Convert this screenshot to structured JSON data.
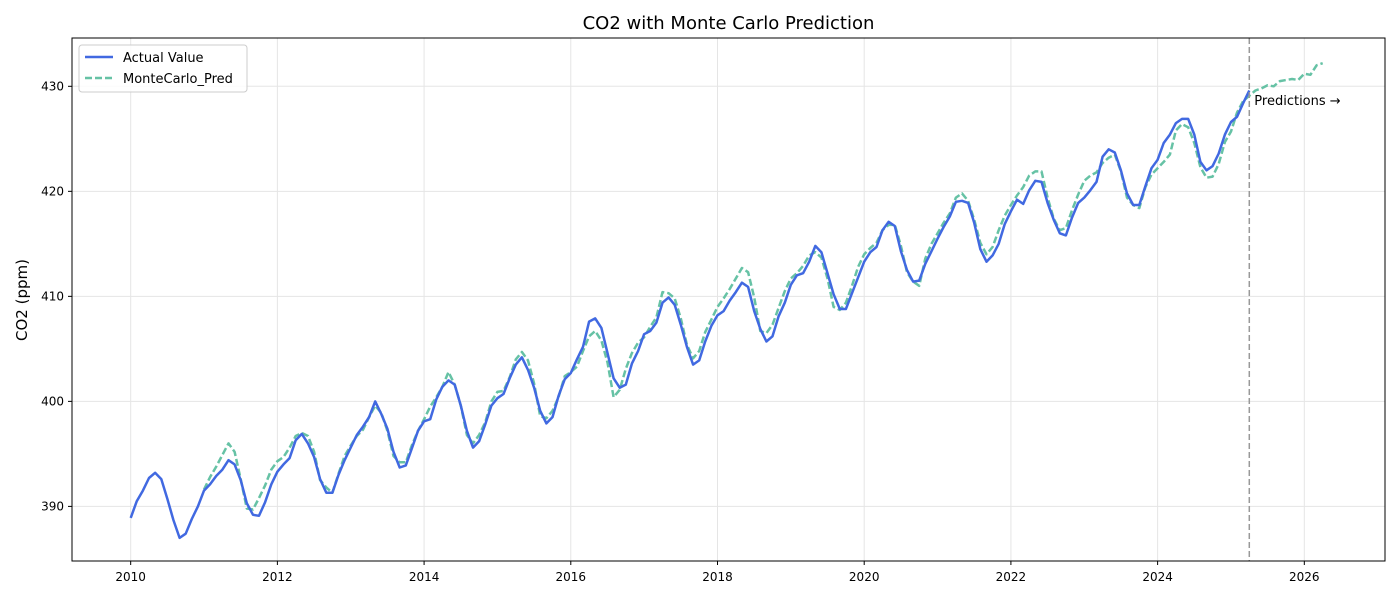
{
  "chart_data": {
    "type": "line",
    "title": "CO2 with Monte Carlo Prediction",
    "xlabel": "",
    "ylabel": "CO2 (ppm)",
    "xlim": [
      2009.2,
      2027.1
    ],
    "ylim": [
      384.8,
      434.6
    ],
    "xticks": [
      2010,
      2012,
      2014,
      2016,
      2018,
      2020,
      2022,
      2024,
      2026
    ],
    "yticks": [
      390,
      400,
      410,
      420,
      430
    ],
    "grid": true,
    "legend_position": "top-left",
    "colors": {
      "actual": "#4169e1",
      "montecarlo": "#66c2a5",
      "cutoff": "#999999"
    },
    "cutoff_x": 2025.25,
    "annotation": "Predictions →",
    "series": [
      {
        "name": "Actual Value",
        "style": "solid",
        "x": [
          2010.0,
          2010.083,
          2010.167,
          2010.25,
          2010.333,
          2010.417,
          2010.5,
          2010.583,
          2010.667,
          2010.75,
          2010.833,
          2010.917,
          2011.0,
          2011.083,
          2011.167,
          2011.25,
          2011.333,
          2011.417,
          2011.5,
          2011.583,
          2011.667,
          2011.75,
          2011.833,
          2011.917,
          2012.0,
          2012.083,
          2012.167,
          2012.25,
          2012.333,
          2012.417,
          2012.5,
          2012.583,
          2012.667,
          2012.75,
          2012.833,
          2012.917,
          2013.0,
          2013.083,
          2013.167,
          2013.25,
          2013.333,
          2013.417,
          2013.5,
          2013.583,
          2013.667,
          2013.75,
          2013.833,
          2013.917,
          2014.0,
          2014.083,
          2014.167,
          2014.25,
          2014.333,
          2014.417,
          2014.5,
          2014.583,
          2014.667,
          2014.75,
          2014.833,
          2014.917,
          2015.0,
          2015.083,
          2015.167,
          2015.25,
          2015.333,
          2015.417,
          2015.5,
          2015.583,
          2015.667,
          2015.75,
          2015.833,
          2015.917,
          2016.0,
          2016.083,
          2016.167,
          2016.25,
          2016.333,
          2016.417,
          2016.5,
          2016.583,
          2016.667,
          2016.75,
          2016.833,
          2016.917,
          2017.0,
          2017.083,
          2017.167,
          2017.25,
          2017.333,
          2017.417,
          2017.5,
          2017.583,
          2017.667,
          2017.75,
          2017.833,
          2017.917,
          2018.0,
          2018.083,
          2018.167,
          2018.25,
          2018.333,
          2018.417,
          2018.5,
          2018.583,
          2018.667,
          2018.75,
          2018.833,
          2018.917,
          2019.0,
          2019.083,
          2019.167,
          2019.25,
          2019.333,
          2019.417,
          2019.5,
          2019.583,
          2019.667,
          2019.75,
          2019.833,
          2019.917,
          2020.0,
          2020.083,
          2020.167,
          2020.25,
          2020.333,
          2020.417,
          2020.5,
          2020.583,
          2020.667,
          2020.75,
          2020.833,
          2020.917,
          2021.0,
          2021.083,
          2021.167,
          2021.25,
          2021.333,
          2021.417,
          2021.5,
          2021.583,
          2021.667,
          2021.75,
          2021.833,
          2021.917,
          2022.0,
          2022.083,
          2022.167,
          2022.25,
          2022.333,
          2022.417,
          2022.5,
          2022.583,
          2022.667,
          2022.75,
          2022.833,
          2022.917,
          2023.0,
          2023.083,
          2023.167,
          2023.25,
          2023.333,
          2023.417,
          2023.5,
          2023.583,
          2023.667,
          2023.75,
          2023.833,
          2023.917,
          2024.0,
          2024.083,
          2024.167,
          2024.25,
          2024.333,
          2024.417,
          2024.5,
          2024.583,
          2024.667,
          2024.75,
          2024.833,
          2024.917,
          2025.0,
          2025.083,
          2025.167,
          2025.25
        ],
        "y": [
          388.9,
          390.5,
          391.5,
          392.7,
          393.2,
          392.6,
          390.7,
          388.7,
          387.0,
          387.4,
          388.8,
          390.0,
          391.5,
          392.1,
          392.9,
          393.5,
          394.4,
          394.0,
          392.5,
          390.3,
          389.2,
          389.1,
          390.4,
          392.1,
          393.3,
          394.0,
          394.6,
          396.3,
          396.9,
          396.0,
          394.7,
          392.6,
          391.3,
          391.3,
          393.0,
          394.4,
          395.6,
          396.8,
          397.6,
          398.5,
          400.0,
          398.8,
          397.4,
          395.2,
          393.7,
          393.9,
          395.5,
          397.2,
          398.1,
          398.3,
          400.2,
          401.4,
          402.0,
          401.6,
          399.6,
          397.2,
          395.6,
          396.2,
          397.8,
          399.6,
          400.3,
          400.7,
          402.2,
          403.5,
          404.2,
          403.0,
          401.3,
          399.1,
          397.9,
          398.5,
          400.5,
          402.1,
          402.7,
          404.0,
          405.2,
          407.6,
          407.9,
          407.0,
          404.6,
          402.2,
          401.3,
          401.6,
          403.6,
          404.8,
          406.4,
          406.7,
          407.5,
          409.4,
          409.9,
          409.2,
          407.3,
          405.2,
          403.5,
          403.9,
          405.7,
          407.2,
          408.2,
          408.6,
          409.6,
          410.4,
          411.3,
          410.9,
          408.6,
          406.9,
          405.7,
          406.2,
          408.1,
          409.4,
          411.1,
          412.0,
          412.2,
          413.3,
          414.8,
          414.2,
          412.2,
          410.2,
          408.8,
          408.8,
          410.3,
          411.8,
          413.3,
          414.2,
          414.7,
          416.3,
          417.1,
          416.7,
          414.3,
          412.5,
          411.4,
          411.5,
          413.1,
          414.3,
          415.5,
          416.6,
          417.6,
          419.0,
          419.1,
          418.9,
          417.0,
          414.5,
          413.3,
          413.9,
          415.0,
          416.9,
          418.1,
          419.2,
          418.8,
          420.1,
          421.0,
          420.9,
          418.9,
          417.3,
          416.0,
          415.8,
          417.5,
          418.9,
          419.4,
          420.1,
          420.9,
          423.3,
          424.0,
          423.7,
          422.0,
          419.8,
          418.7,
          418.7,
          420.5,
          422.2,
          423.0,
          424.6,
          425.4,
          426.5,
          426.9,
          426.9,
          425.4,
          422.8,
          422.0,
          422.4,
          423.6,
          425.4,
          426.6,
          427.1,
          428.4,
          429.6
        ]
      },
      {
        "name": "MonteCarlo_Pred",
        "style": "dashed",
        "x": [
          2011.0,
          2011.083,
          2011.167,
          2011.25,
          2011.333,
          2011.417,
          2011.5,
          2011.583,
          2011.667,
          2011.75,
          2011.833,
          2011.917,
          2012.0,
          2012.083,
          2012.167,
          2012.25,
          2012.333,
          2012.417,
          2012.5,
          2012.583,
          2012.667,
          2012.75,
          2012.833,
          2012.917,
          2013.0,
          2013.083,
          2013.167,
          2013.25,
          2013.333,
          2013.417,
          2013.5,
          2013.583,
          2013.667,
          2013.75,
          2013.833,
          2013.917,
          2014.0,
          2014.083,
          2014.167,
          2014.25,
          2014.333,
          2014.417,
          2014.5,
          2014.583,
          2014.667,
          2014.75,
          2014.833,
          2014.917,
          2015.0,
          2015.083,
          2015.167,
          2015.25,
          2015.333,
          2015.417,
          2015.5,
          2015.583,
          2015.667,
          2015.75,
          2015.833,
          2015.917,
          2016.0,
          2016.083,
          2016.167,
          2016.25,
          2016.333,
          2016.417,
          2016.5,
          2016.583,
          2016.667,
          2016.75,
          2016.833,
          2016.917,
          2017.0,
          2017.083,
          2017.167,
          2017.25,
          2017.333,
          2017.417,
          2017.5,
          2017.583,
          2017.667,
          2017.75,
          2017.833,
          2017.917,
          2018.0,
          2018.083,
          2018.167,
          2018.25,
          2018.333,
          2018.417,
          2018.5,
          2018.583,
          2018.667,
          2018.75,
          2018.833,
          2018.917,
          2019.0,
          2019.083,
          2019.167,
          2019.25,
          2019.333,
          2019.417,
          2019.5,
          2019.583,
          2019.667,
          2019.75,
          2019.833,
          2019.917,
          2020.0,
          2020.083,
          2020.167,
          2020.25,
          2020.333,
          2020.417,
          2020.5,
          2020.583,
          2020.667,
          2020.75,
          2020.833,
          2020.917,
          2021.0,
          2021.083,
          2021.167,
          2021.25,
          2021.333,
          2021.417,
          2021.5,
          2021.583,
          2021.667,
          2021.75,
          2021.833,
          2021.917,
          2022.0,
          2022.083,
          2022.167,
          2022.25,
          2022.333,
          2022.417,
          2022.5,
          2022.583,
          2022.667,
          2022.75,
          2022.833,
          2022.917,
          2023.0,
          2023.083,
          2023.167,
          2023.25,
          2023.333,
          2023.417,
          2023.5,
          2023.583,
          2023.667,
          2023.75,
          2023.833,
          2023.917,
          2024.0,
          2024.083,
          2024.167,
          2024.25,
          2024.333,
          2024.417,
          2024.5,
          2024.583,
          2024.667,
          2024.75,
          2024.833,
          2024.917,
          2025.0,
          2025.083,
          2025.167,
          2025.25,
          2025.333,
          2025.417,
          2025.5,
          2025.583,
          2025.667,
          2025.75,
          2025.833,
          2025.917,
          2026.0,
          2026.083,
          2026.167,
          2026.25
        ],
        "y": [
          391.6,
          392.8,
          393.8,
          394.9,
          396.0,
          395.2,
          392.6,
          389.8,
          389.7,
          390.8,
          392.0,
          393.5,
          394.3,
          394.7,
          395.6,
          396.7,
          397.0,
          396.7,
          395.2,
          392.5,
          391.8,
          391.3,
          393.1,
          394.8,
          395.8,
          396.7,
          397.3,
          398.5,
          399.6,
          398.9,
          397.2,
          394.8,
          394.2,
          394.2,
          395.8,
          397.2,
          398.3,
          399.5,
          400.4,
          401.4,
          402.8,
          401.6,
          399.6,
          396.8,
          396.0,
          396.8,
          398.0,
          400.0,
          400.9,
          401.0,
          402.3,
          404.0,
          404.7,
          403.9,
          401.7,
          398.6,
          398.4,
          399.1,
          400.4,
          402.4,
          402.8,
          403.3,
          404.8,
          406.2,
          406.7,
          405.8,
          403.7,
          400.4,
          401.1,
          403.1,
          404.6,
          405.6,
          406.1,
          407.1,
          408.0,
          410.4,
          410.3,
          409.8,
          407.9,
          405.4,
          404.1,
          404.8,
          406.6,
          407.8,
          409.0,
          409.8,
          410.7,
          411.7,
          412.7,
          412.3,
          409.9,
          406.7,
          406.5,
          407.3,
          408.9,
          410.5,
          411.7,
          412.2,
          412.9,
          413.9,
          414.2,
          413.7,
          411.7,
          409.0,
          408.7,
          409.4,
          411.0,
          412.8,
          414.0,
          414.6,
          415.1,
          416.3,
          416.8,
          416.8,
          414.8,
          412.3,
          411.4,
          411.0,
          413.6,
          415.0,
          416.0,
          417.0,
          417.9,
          419.4,
          419.8,
          419.1,
          417.3,
          415.1,
          414.0,
          414.7,
          416.3,
          417.7,
          418.7,
          419.6,
          420.4,
          421.5,
          421.9,
          421.9,
          419.4,
          417.4,
          416.3,
          416.5,
          418.2,
          419.7,
          421.0,
          421.5,
          421.8,
          422.7,
          423.2,
          423.5,
          421.9,
          419.4,
          418.7,
          418.4,
          420.4,
          421.6,
          422.2,
          422.8,
          423.5,
          425.8,
          426.4,
          426.1,
          424.6,
          422.3,
          421.3,
          421.4,
          422.6,
          424.7,
          425.7,
          427.5,
          428.6,
          429.1,
          429.6,
          429.8,
          430.1,
          430.0,
          430.5,
          430.6,
          430.7,
          430.6,
          431.2,
          431.1,
          432.0,
          432.2
        ]
      }
    ]
  }
}
